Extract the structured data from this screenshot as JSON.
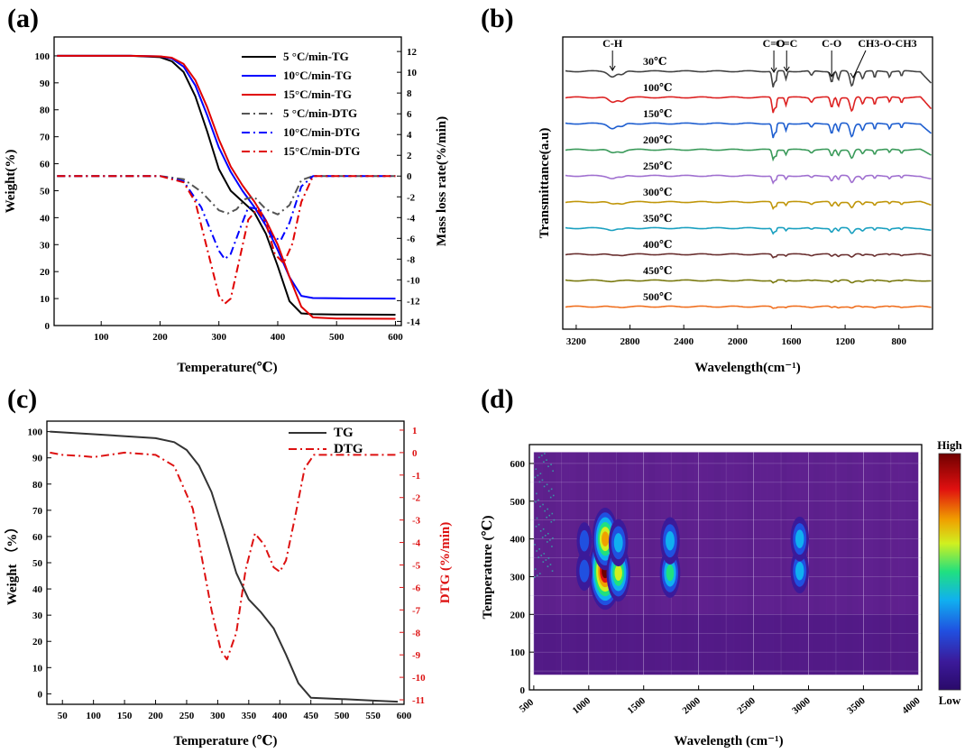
{
  "figure": {
    "panel_labels": [
      "(a)",
      "(b)",
      "(c)",
      "(d)"
    ]
  },
  "chart_data": [
    {
      "id": "a",
      "type": "line",
      "xlabel": "Temperature(℃)",
      "ylabel": "Weight(%)",
      "y2label": "Mass loss rate(%/min)",
      "xlim": [
        20,
        610
      ],
      "ylim": [
        0,
        107
      ],
      "y2lim": [
        -14.4,
        13.4
      ],
      "xticks": [
        100,
        200,
        300,
        400,
        500,
        600
      ],
      "yticks": [
        0,
        10,
        20,
        30,
        40,
        50,
        60,
        70,
        80,
        90,
        100
      ],
      "y2ticks": [
        -14,
        -12,
        -10,
        -8,
        -6,
        -4,
        -2,
        0,
        2,
        4,
        6,
        8,
        10,
        12
      ],
      "legend_position": "top-right",
      "series": [
        {
          "name": "5 °C/min-TG",
          "axis": "left",
          "color": "#000000",
          "dash": "solid",
          "x": [
            25,
            150,
            200,
            220,
            240,
            260,
            280,
            300,
            320,
            340,
            360,
            380,
            400,
            420,
            440,
            460,
            500,
            600
          ],
          "y": [
            100,
            100,
            99.5,
            98,
            94,
            85,
            72,
            58,
            50,
            46,
            42,
            34,
            22,
            9,
            4.5,
            4.2,
            4.1,
            4
          ]
        },
        {
          "name": "10°C/min-TG",
          "axis": "left",
          "color": "#0000ff",
          "dash": "solid",
          "x": [
            25,
            150,
            200,
            220,
            240,
            260,
            280,
            300,
            320,
            340,
            360,
            380,
            400,
            420,
            440,
            460,
            500,
            600
          ],
          "y": [
            100,
            100,
            99.8,
            99,
            96,
            89,
            78,
            66,
            57,
            50,
            44,
            37,
            28,
            18,
            11,
            10.2,
            10.1,
            10
          ]
        },
        {
          "name": "15°C/min-TG",
          "axis": "left",
          "color": "#e00000",
          "dash": "solid",
          "x": [
            25,
            150,
            200,
            220,
            240,
            260,
            280,
            300,
            320,
            340,
            360,
            380,
            400,
            420,
            440,
            460,
            500,
            600
          ],
          "y": [
            100,
            100,
            99.8,
            99.3,
            97,
            91,
            81,
            69,
            59,
            52,
            46,
            39,
            30,
            18,
            7,
            3,
            2.6,
            2.5
          ]
        },
        {
          "name": "5 °C/min-DTG",
          "axis": "right",
          "color": "#555555",
          "dash": "dashdot",
          "x": [
            25,
            200,
            240,
            270,
            300,
            315,
            330,
            345,
            360,
            380,
            400,
            420,
            440,
            460,
            600
          ],
          "y": [
            0,
            0,
            -0.3,
            -1.5,
            -3.3,
            -3.6,
            -3.2,
            -2.2,
            -2.0,
            -3.2,
            -3.7,
            -2.8,
            -0.4,
            0,
            0
          ]
        },
        {
          "name": "10°C/min-DTG",
          "axis": "right",
          "color": "#0000ff",
          "dash": "dashdot",
          "x": [
            25,
            200,
            240,
            270,
            300,
            310,
            320,
            335,
            350,
            370,
            390,
            405,
            420,
            440,
            460,
            600
          ],
          "y": [
            0,
            0,
            -0.5,
            -3,
            -7.2,
            -8,
            -7.5,
            -5.2,
            -3.0,
            -3.2,
            -5.8,
            -6.2,
            -4.5,
            -1,
            0,
            0
          ]
        },
        {
          "name": "15°C/min-DTG",
          "axis": "right",
          "color": "#e00000",
          "dash": "dashdot",
          "x": [
            25,
            200,
            240,
            260,
            280,
            300,
            310,
            320,
            335,
            350,
            365,
            380,
            395,
            410,
            425,
            440,
            460,
            600
          ],
          "y": [
            0,
            0,
            -0.6,
            -2.5,
            -7,
            -11.5,
            -12.3,
            -11.8,
            -8,
            -4.2,
            -3.2,
            -4.5,
            -7.5,
            -8.4,
            -6.5,
            -2.5,
            0,
            0
          ]
        }
      ]
    },
    {
      "id": "b",
      "type": "line",
      "xlabel": "Wavelength(cm⁻¹)",
      "ylabel": "Transmittance(a.u)",
      "xlim": [
        3300,
        550
      ],
      "xticks": [
        3200,
        2800,
        2400,
        2000,
        1600,
        1200,
        800
      ],
      "temperatures": [
        "30℃",
        "100℃",
        "150℃",
        "200℃",
        "250℃",
        "300℃",
        "350℃",
        "400℃",
        "450℃",
        "500℃"
      ],
      "colors": [
        "#444444",
        "#dd2222",
        "#1f5fd0",
        "#3a9a5a",
        "#a070d0",
        "#c0960a",
        "#1aa0c0",
        "#6a3030",
        "#7a7a10",
        "#f07020"
      ],
      "peak_scale": [
        1.0,
        0.95,
        0.9,
        0.6,
        0.45,
        0.4,
        0.35,
        0.2,
        0.15,
        0.1
      ],
      "annotations": [
        {
          "text": "C-H",
          "x": 2930
        },
        {
          "text": "C=O",
          "x": 1730
        },
        {
          "text": "C=C",
          "x": 1635
        },
        {
          "text": "C-O",
          "x": 1300
        },
        {
          "text": "CH3-O-CH3",
          "x": 1100
        }
      ]
    },
    {
      "id": "c",
      "type": "line",
      "xlabel": "Temperature (℃)",
      "ylabel": "Weight （%）",
      "y2label": "DTG (%/min)",
      "xlim": [
        25,
        600
      ],
      "ylim": [
        -4,
        104
      ],
      "y2lim": [
        -11.2,
        1.4
      ],
      "xticks": [
        50,
        100,
        150,
        200,
        250,
        300,
        350,
        400,
        450,
        500,
        550,
        600
      ],
      "yticks": [
        0,
        10,
        20,
        30,
        40,
        50,
        60,
        70,
        80,
        90,
        100
      ],
      "y2ticks": [
        1,
        0,
        -1,
        -2,
        -3,
        -4,
        -5,
        -6,
        -7,
        -8,
        -9,
        -10,
        -11
      ],
      "legend_position": "top-right",
      "series": [
        {
          "name": "TG",
          "axis": "left",
          "color": "#333333",
          "dash": "solid",
          "x": [
            30,
            100,
            200,
            230,
            250,
            270,
            290,
            310,
            330,
            350,
            370,
            390,
            410,
            430,
            450,
            500,
            550,
            590
          ],
          "y": [
            100,
            99,
            97.5,
            96,
            93,
            87,
            77,
            62,
            46,
            36,
            31,
            25,
            15,
            4,
            -1.5,
            -2,
            -2.6,
            -3
          ]
        },
        {
          "name": "DTG",
          "axis": "right",
          "color": "#dd1111",
          "dash": "dashdot",
          "x": [
            30,
            50,
            80,
            100,
            150,
            200,
            230,
            260,
            290,
            305,
            315,
            330,
            345,
            360,
            375,
            390,
            400,
            410,
            425,
            440,
            455,
            470,
            500,
            550,
            590
          ],
          "y": [
            0,
            -0.1,
            -0.15,
            -0.2,
            0,
            -0.1,
            -0.6,
            -2.5,
            -7,
            -8.8,
            -9.2,
            -8,
            -5.2,
            -3.6,
            -4.1,
            -5.1,
            -5.3,
            -4.8,
            -2.8,
            -0.7,
            -0.1,
            -0.1,
            -0.1,
            -0.1,
            -0.1
          ]
        }
      ]
    },
    {
      "id": "d",
      "type": "heatmap",
      "xlabel": "Wavelength (cm⁻¹)",
      "ylabel": "Temperature (℃)",
      "xlim": [
        460,
        4030
      ],
      "ylim": [
        0,
        650
      ],
      "xticks": [
        500,
        1000,
        1500,
        2000,
        2500,
        3000,
        3500,
        4000
      ],
      "yticks": [
        0,
        100,
        200,
        300,
        400,
        500,
        600
      ],
      "colorbar_labels": {
        "high": "High",
        "low": "Low"
      },
      "colorscale": [
        "#2a0a6a",
        "#3b1a9a",
        "#2050e0",
        "#10b0f0",
        "#20e080",
        "#d0f020",
        "#f0a000",
        "#e01010",
        "#700000"
      ],
      "hotspots": [
        {
          "x": 1150,
          "y": 315,
          "value": 1.0
        },
        {
          "x": 1150,
          "y": 400,
          "value": 0.7
        },
        {
          "x": 1270,
          "y": 310,
          "value": 0.6
        },
        {
          "x": 1270,
          "y": 390,
          "value": 0.4
        },
        {
          "x": 1740,
          "y": 310,
          "value": 0.45
        },
        {
          "x": 1740,
          "y": 395,
          "value": 0.4
        },
        {
          "x": 2920,
          "y": 315,
          "value": 0.35
        },
        {
          "x": 2920,
          "y": 400,
          "value": 0.35
        },
        {
          "x": 960,
          "y": 315,
          "value": 0.25
        },
        {
          "x": 960,
          "y": 395,
          "value": 0.2
        }
      ]
    }
  ]
}
